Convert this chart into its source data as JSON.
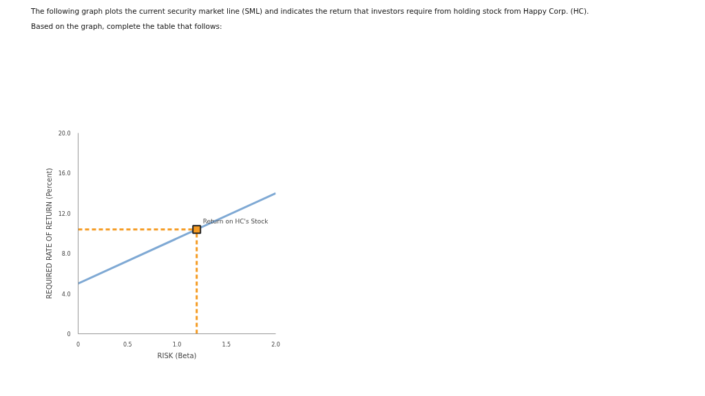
{
  "chart_data": {
    "type": "line",
    "title": "The following graph plots the current security market line (SML) and indicates the return that investors require from holding stock from Happy Corp. (HC). Based on the graph, complete the table that follows:",
    "xlabel": "RISK (Beta)",
    "ylabel": "REQUIRED RATE OF RETURN (Percent)",
    "xlim": [
      0,
      2
    ],
    "ylim": [
      0,
      20
    ],
    "xticks": [
      0,
      0.5,
      {
        "value": 1,
        "label": "1.0"
      },
      1.5,
      {
        "value": 2,
        "label": "2.0"
      }
    ],
    "yticks": [
      0,
      {
        "value": 4,
        "label": "4.0"
      },
      {
        "value": 8,
        "label": "8.0"
      },
      {
        "value": 12,
        "label": "12.0"
      },
      {
        "value": 16,
        "label": "16.0"
      },
      {
        "value": 20,
        "label": "20.0"
      }
    ],
    "grid": false,
    "series": [
      {
        "color": "#7fa9d4",
        "x": [
          0,
          2
        ],
        "values": [
          5.0,
          14.0
        ],
        "line_style": "solid"
      },
      {
        "color": "#f59b23",
        "x": [
          0,
          1.2
        ],
        "values": [
          10.4,
          10.4
        ],
        "line_style": "dashed"
      },
      {
        "color": "#f59b23",
        "x": [
          1.2,
          1.2
        ],
        "values": [
          0,
          10.4
        ],
        "line_style": "dashed"
      },
      {
        "type": "scatter",
        "color": "#f59b23",
        "x": [
          1.2
        ],
        "values": [
          10.4
        ],
        "marker": "square"
      }
    ],
    "annotations": [
      {
        "text": "Return on HC's Stock",
        "x": 1.2,
        "y": 10.4
      }
    ]
  }
}
